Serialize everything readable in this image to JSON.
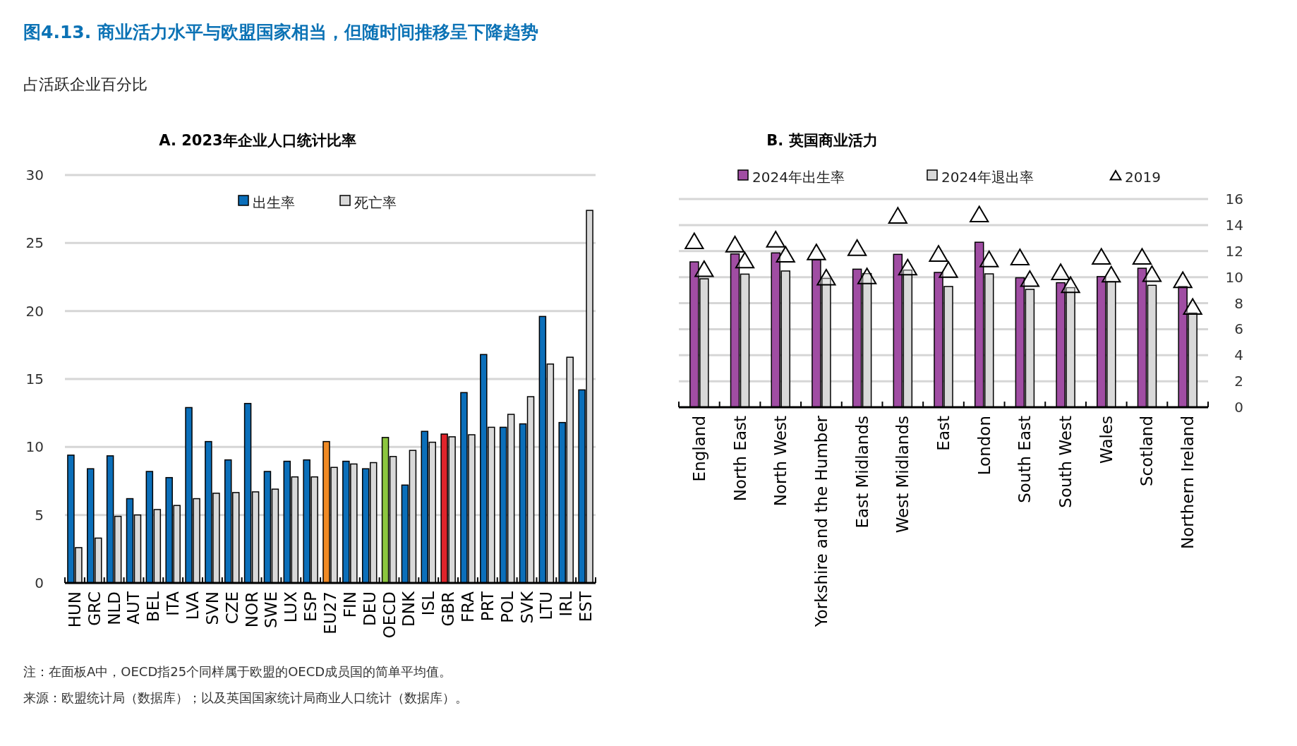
{
  "chart_data": [
    {
      "type": "bar",
      "title": "A. 2023年企业人口统计比率",
      "ylabel": "占活跃企业百分比",
      "annotations": [
        "图4.13. 商业活力水平与欧盟国家相当，但随时间推移呈下降趋势",
        "注：在面板A中，OECD指25个同样属于欧盟的OECD成员国的简单平均值。",
        "来源：欧盟统计局（数据库）；以及英国国家统计局商业人口统计（数据库）。"
      ],
      "categories": [
        "HUN",
        "GRC",
        "NLD",
        "AUT",
        "BEL",
        "ITA",
        "LVA",
        "SVN",
        "CZE",
        "NOR",
        "SWE",
        "LUX",
        "ESP",
        "EU27",
        "FIN",
        "DEU",
        "OECD",
        "DNK",
        "ISL",
        "GBR",
        "FRA",
        "PRT",
        "POL",
        "SVK",
        "LTU",
        "IRL",
        "EST"
      ],
      "series": [
        {
          "name": "出生率",
          "color": "#0b6fba",
          "colors": [
            "#0b6fba",
            "#0b6fba",
            "#0b6fba",
            "#0b6fba",
            "#0b6fba",
            "#0b6fba",
            "#0b6fba",
            "#0b6fba",
            "#0b6fba",
            "#0b6fba",
            "#0b6fba",
            "#0b6fba",
            "#0b6fba",
            "#f08a24",
            "#0b6fba",
            "#0b6fba",
            "#8cc63f",
            "#0b6fba",
            "#0b6fba",
            "#e0242b",
            "#0b6fba",
            "#0b6fba",
            "#0b6fba",
            "#0b6fba",
            "#0b6fba",
            "#0b6fba",
            "#0b6fba"
          ],
          "values": [
            9.4,
            8.4,
            9.35,
            6.2,
            8.2,
            7.75,
            12.9,
            10.4,
            9.05,
            13.2,
            8.2,
            8.95,
            9.05,
            10.4,
            8.95,
            8.4,
            10.7,
            7.2,
            11.15,
            10.95,
            14.0,
            16.8,
            11.45,
            11.7,
            19.6,
            11.8,
            14.2
          ]
        },
        {
          "name": "死亡率",
          "color": "#d9d9d9",
          "values": [
            2.6,
            3.3,
            4.9,
            5.0,
            5.4,
            5.7,
            6.2,
            6.6,
            6.65,
            6.7,
            6.9,
            7.8,
            7.8,
            8.5,
            8.75,
            8.85,
            9.3,
            9.75,
            10.35,
            10.75,
            10.9,
            11.45,
            12.4,
            13.7,
            16.1,
            16.6,
            27.4
          ]
        }
      ],
      "ylim": [
        0,
        30
      ],
      "yticks": [
        0,
        5,
        10,
        15,
        20,
        25,
        30
      ],
      "grid": "y",
      "legend": "top"
    },
    {
      "type": "bar",
      "title": "B. 英国商业活力",
      "categories": [
        "England",
        "North East",
        "North West",
        "Yorkshire and the Humber",
        "East Midlands",
        "West Midlands",
        "East",
        "London",
        "South East",
        "South West",
        "Wales",
        "Scotland",
        "Northern Ireland"
      ],
      "series": [
        {
          "name": "2024年出生率",
          "color": "#a04da3",
          "values": [
            11.17,
            11.78,
            11.86,
            11.32,
            10.61,
            11.75,
            10.36,
            12.68,
            9.95,
            9.57,
            10.04,
            10.68,
            9.28
          ]
        },
        {
          "name": "2024年退出率",
          "color": "#d9d9d9",
          "values": [
            9.87,
            10.23,
            10.47,
            9.9,
            10.27,
            10.54,
            9.28,
            10.25,
            9.06,
            9.19,
            9.64,
            9.37,
            7.24
          ]
        },
        {
          "name": "2019",
          "type": "scatter",
          "marker": "triangle",
          "color": "#ffffff",
          "x": [
            "England",
            "North East",
            "North West",
            "Yorkshire and the Humber",
            "East Midlands",
            "West Midlands",
            "East",
            "London",
            "South East",
            "South West",
            "Wales",
            "Scotland",
            "Northern Ireland"
          ],
          "values": [
            12.72,
            12.47,
            12.85,
            11.87,
            12.2,
            14.68,
            11.75,
            14.78,
            11.48,
            10.34,
            11.53,
            11.53,
            9.73
          ]
        },
        {
          "type": "scatter",
          "marker": "triangle",
          "color": "#ffffff",
          "x": [
            "England",
            "North East",
            "North West",
            "Yorkshire and the Humber",
            "East Midlands",
            "West Midlands",
            "East",
            "London",
            "South East",
            "South West",
            "Wales",
            "Scotland",
            "Northern Ireland"
          ],
          "values": [
            10.58,
            11.24,
            11.69,
            9.93,
            10.02,
            10.7,
            10.52,
            11.33,
            9.82,
            9.35,
            10.16,
            10.2,
            7.68
          ]
        }
      ],
      "ylim": [
        0,
        16
      ],
      "yticks": [
        0,
        2,
        4,
        6,
        8,
        10,
        12,
        14,
        16
      ],
      "grid": "y",
      "legend": "top"
    }
  ]
}
